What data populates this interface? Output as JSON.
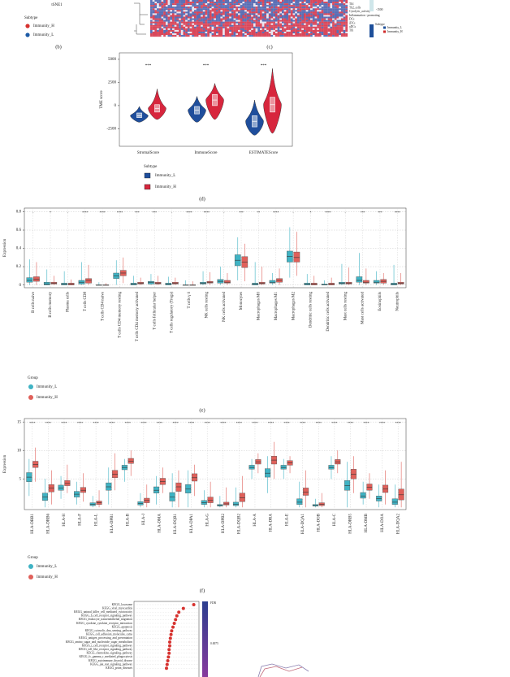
{
  "panel_labels": [
    "(b)",
    "(c)",
    "(d)",
    "(e)",
    "(f)"
  ],
  "chart_data": [
    {
      "type": "scatter",
      "x_label": "tSNE1",
      "legend_title": "Subtype",
      "series": [
        {
          "name": "Immunity_H",
          "color": "#d6322f"
        },
        {
          "name": "Immunity_L",
          "color": "#1d5ba6"
        }
      ]
    },
    {
      "type": "heatmap",
      "row_labels": [
        "Th1",
        "Th2_cells",
        "Cytolytic_activity",
        "Inflammation - promoting",
        "DCs",
        "iDCs",
        "aDCs",
        "Tfh"
      ],
      "colorbar_ticks": [
        -1500
      ],
      "legend_title": "Subtype",
      "legend_items": [
        "Immunity_L",
        "Immunity_H"
      ],
      "legend_colors": [
        "#1d4f9a",
        "#d02a2a"
      ]
    },
    {
      "type": "violin",
      "y_label": "TME score",
      "categories": [
        "StromalScore",
        "ImmuneScore",
        "ESTIMATEScore"
      ],
      "significance": [
        "***",
        "***",
        "***"
      ],
      "ylim": [
        -4400,
        5700
      ],
      "yticks": [
        5000,
        2500,
        0,
        -2500
      ],
      "legend_title": "Subtype",
      "series": [
        {
          "name": "Immunity_L",
          "color": "#1f4e9c",
          "boxes": [
            [
              -1800,
              -1300,
              -1100,
              -800,
              -100
            ],
            [
              -1800,
              -900,
              -500,
              -100,
              1000
            ],
            [
              -3200,
              -2300,
              -1700,
              -1100,
              600
            ]
          ]
        },
        {
          "name": "Immunity_H",
          "color": "#d7263d",
          "boxes": [
            [
              -1500,
              -700,
              -300,
              100,
              1800
            ],
            [
              -1500,
              0,
              600,
              1200,
              2400
            ],
            [
              -3000,
              -700,
              100,
              900,
              4000
            ]
          ]
        }
      ]
    },
    {
      "type": "box",
      "y_label": "Expression",
      "ylim": [
        -0.03,
        0.84
      ],
      "yticks": [
        0.0,
        0.2,
        0.4,
        0.6,
        0.8
      ],
      "categories": [
        "B cells naive",
        "B cells memory",
        "Plasma cells",
        "T cells CD8",
        "T cells CD4 naive",
        "T cells CD4 memory resting",
        "T cells CD4 memory activated",
        "T cells follicular helper",
        "T cells regulatory (Tregs)",
        "T cells γ δ",
        "NK cells resting",
        "NK cells activated",
        "Monocytes",
        "Macrophages M0",
        "Macrophages M1",
        "Macrophages M2",
        "Dendritic cells resting",
        "Dendritic cells activated",
        "Mast cells resting",
        "Mast cells activated",
        "Eosinophils",
        "Neutrophils"
      ],
      "significance": [
        "-",
        "*",
        "-",
        "****",
        "****",
        "****",
        "***",
        "***",
        "-",
        "****",
        "****",
        "-",
        "***",
        "**",
        "****",
        "-",
        "*",
        "****",
        "-",
        "***",
        "***",
        "****"
      ],
      "legend_title": "Group",
      "series": [
        {
          "name": "Immunity_L",
          "color": "#3fb3c4",
          "boxes": [
            [
              0,
              0.03,
              0.05,
              0.08,
              0.28
            ],
            [
              0,
              0,
              0.01,
              0.03,
              0.17
            ],
            [
              0,
              0,
              0.01,
              0.02,
              0.15
            ],
            [
              0,
              0.01,
              0.03,
              0.05,
              0.25
            ],
            [
              0,
              0,
              0,
              0,
              0.03
            ],
            [
              0,
              0.07,
              0.1,
              0.13,
              0.27
            ],
            [
              0,
              0,
              0.01,
              0.02,
              0.1
            ],
            [
              0,
              0.01,
              0.03,
              0.04,
              0.12
            ],
            [
              0,
              0,
              0.01,
              0.02,
              0.09
            ],
            [
              0,
              0,
              0,
              0,
              0.05
            ],
            [
              0,
              0.01,
              0.02,
              0.03,
              0.15
            ],
            [
              0,
              0.02,
              0.04,
              0.06,
              0.2
            ],
            [
              0.05,
              0.21,
              0.27,
              0.33,
              0.52
            ],
            [
              0,
              0,
              0.01,
              0.02,
              0.25
            ],
            [
              0,
              0.02,
              0.03,
              0.05,
              0.13
            ],
            [
              0.08,
              0.25,
              0.31,
              0.37,
              0.63
            ],
            [
              0,
              0,
              0.01,
              0.02,
              0.12
            ],
            [
              0,
              0,
              0,
              0.01,
              0.05
            ],
            [
              0,
              0.01,
              0.02,
              0.03,
              0.23
            ],
            [
              0,
              0.03,
              0.05,
              0.09,
              0.35
            ],
            [
              0,
              0.02,
              0.03,
              0.05,
              0.15
            ],
            [
              0,
              0,
              0.01,
              0.02,
              0.22
            ]
          ]
        },
        {
          "name": "Immunity_H",
          "color": "#e0605a",
          "boxes": [
            [
              0,
              0.04,
              0.06,
              0.09,
              0.25
            ],
            [
              0,
              0.01,
              0.02,
              0.03,
              0.1
            ],
            [
              0,
              0,
              0.01,
              0.02,
              0.06
            ],
            [
              0,
              0.02,
              0.05,
              0.07,
              0.22
            ],
            [
              0,
              0,
              0,
              0,
              0.02
            ],
            [
              0.02,
              0.1,
              0.13,
              0.16,
              0.3
            ],
            [
              0,
              0.01,
              0.02,
              0.03,
              0.08
            ],
            [
              0,
              0.01,
              0.02,
              0.03,
              0.1
            ],
            [
              0,
              0.01,
              0.02,
              0.03,
              0.08
            ],
            [
              0,
              0,
              0,
              0,
              0.04
            ],
            [
              0,
              0.02,
              0.03,
              0.04,
              0.14
            ],
            [
              0,
              0.02,
              0.03,
              0.05,
              0.13
            ],
            [
              0.04,
              0.19,
              0.25,
              0.31,
              0.45
            ],
            [
              0,
              0.01,
              0.02,
              0.03,
              0.2
            ],
            [
              0,
              0.03,
              0.05,
              0.07,
              0.18
            ],
            [
              0.1,
              0.25,
              0.3,
              0.36,
              0.58
            ],
            [
              0,
              0,
              0.01,
              0.02,
              0.1
            ],
            [
              0,
              0,
              0.01,
              0.02,
              0.08
            ],
            [
              0,
              0.01,
              0.02,
              0.03,
              0.19
            ],
            [
              0,
              0.02,
              0.03,
              0.05,
              0.18
            ],
            [
              0,
              0.02,
              0.04,
              0.06,
              0.13
            ],
            [
              0,
              0.01,
              0.02,
              0.03,
              0.13
            ]
          ]
        }
      ]
    },
    {
      "type": "box",
      "y_label": "Expression",
      "ylim": [
        -0.4,
        15.6
      ],
      "yticks": [
        5,
        10,
        15
      ],
      "categories": [
        "HLA-DRB1",
        "HLA-DRB6",
        "HLA-H",
        "HLA-F",
        "HLA-L",
        "HLA-DPB1",
        "HLA-B",
        "HLA-J",
        "HLA-DMA",
        "HLA-DQB1",
        "HLA-DPA1",
        "HLA-G",
        "HLA-DPB2",
        "HLA-DQB2",
        "HLA-A",
        "HLA-DRA",
        "HLA-E",
        "HLA-DQA1",
        "HLA-DOB",
        "HLA-C",
        "HLA-DRB5",
        "HLA-DMB",
        "HLA-DOA",
        "HLA-DQA2"
      ],
      "significance": [
        "****",
        "****",
        "****",
        "****",
        "****",
        "****",
        "****",
        "****",
        "****",
        "****",
        "****",
        "****",
        "****",
        "****",
        "****",
        "****",
        "****",
        "****",
        "****",
        "****",
        "****",
        "****",
        "****",
        "****"
      ],
      "legend_title": "Group",
      "series": [
        {
          "name": "Immunity_L",
          "color": "#3fb3c4",
          "boxes": [
            [
              2,
              4.5,
              5.3,
              6.1,
              8.5
            ],
            [
              0,
              1.2,
              1.8,
              2.5,
              5
            ],
            [
              1.5,
              3,
              3.4,
              3.9,
              5.5
            ],
            [
              0.5,
              1.8,
              2.3,
              2.8,
              4.5
            ],
            [
              0,
              0.3,
              0.5,
              0.8,
              2
            ],
            [
              0.5,
              3,
              3.6,
              4.3,
              7
            ],
            [
              4.5,
              6.6,
              7,
              7.4,
              8.5
            ],
            [
              0,
              0.4,
              0.7,
              1,
              2.5
            ],
            [
              0.5,
              2.5,
              3,
              3.6,
              5.5
            ],
            [
              0,
              1.1,
              1.8,
              2.6,
              6
            ],
            [
              0,
              2.5,
              3.2,
              4,
              6.5
            ],
            [
              0,
              0.5,
              0.8,
              1.2,
              3
            ],
            [
              0,
              0.2,
              0.3,
              0.5,
              2
            ],
            [
              0,
              0.3,
              0.5,
              0.9,
              3.5
            ],
            [
              5,
              6.7,
              7,
              7.4,
              8.5
            ],
            [
              2.5,
              5.3,
              6,
              6.8,
              9
            ],
            [
              5,
              6.7,
              7,
              7.4,
              8.5
            ],
            [
              0,
              0.5,
              0.9,
              1.5,
              4.5
            ],
            [
              0,
              0.2,
              0.3,
              0.5,
              1.5
            ],
            [
              5,
              6.7,
              7,
              7.4,
              9
            ],
            [
              0,
              3,
              3.8,
              4.7,
              8
            ],
            [
              0.5,
              1.6,
              2,
              2.6,
              4.5
            ],
            [
              0,
              1.1,
              1.5,
              2,
              4
            ],
            [
              0,
              0.5,
              0.9,
              1.5,
              4
            ]
          ]
        },
        {
          "name": "Immunity_H",
          "color": "#e0605a",
          "boxes": [
            [
              4.5,
              7,
              7.5,
              8.1,
              10.5
            ],
            [
              0.5,
              2.7,
              3.4,
              4,
              6.5
            ],
            [
              2.5,
              3.8,
              4.2,
              4.7,
              7.5
            ],
            [
              1,
              2.6,
              3,
              3.5,
              6
            ],
            [
              0,
              0.5,
              0.8,
              1.1,
              3
            ],
            [
              3,
              5.2,
              5.8,
              6.5,
              9.5
            ],
            [
              5.5,
              7.7,
              8.1,
              8.6,
              10
            ],
            [
              0,
              0.8,
              1.2,
              1.6,
              4
            ],
            [
              2.5,
              4,
              4.5,
              5.1,
              7
            ],
            [
              0,
              2.8,
              3.6,
              4.3,
              6.5
            ],
            [
              2,
              4.6,
              5.2,
              5.9,
              7.5
            ],
            [
              0,
              0.8,
              1.2,
              1.8,
              4.5
            ],
            [
              0,
              0.4,
              0.6,
              0.9,
              3.5
            ],
            [
              0,
              1,
              1.7,
              2.5,
              5.5
            ],
            [
              6,
              7.6,
              8,
              8.4,
              9.5
            ],
            [
              5,
              7.6,
              8.3,
              9,
              11.5
            ],
            [
              6,
              7.4,
              7.8,
              8.2,
              9
            ],
            [
              0,
              2.1,
              2.7,
              3.4,
              6.5
            ],
            [
              0,
              0.3,
              0.5,
              0.8,
              2.5
            ],
            [
              6,
              7.6,
              8,
              8.4,
              10
            ],
            [
              2.5,
              5,
              5.8,
              6.7,
              9
            ],
            [
              1.5,
              3,
              3.5,
              4.1,
              6
            ],
            [
              0.5,
              2.6,
              3.2,
              3.9,
              6.5
            ],
            [
              0,
              1.3,
              2.2,
              3.2,
              8
            ]
          ]
        }
      ]
    },
    {
      "type": "dot",
      "color": "#d6322f",
      "xlim": [
        0,
        1
      ],
      "categories": [
        "KEGG_lysosome",
        "KEGG_viral_myocarditis",
        "KEGG_natural_killer_cell_mediated_cytotoxicity",
        "KEGG_b_cell_receptor_signaling_pathway",
        "KEGG_leukocyte_transendothelial_migration",
        "KEGG_cytokine_cytokine_receptor_interaction",
        "KEGG_apoptosis",
        "KEGG_cytosolic_dna_sensing_pathway",
        "KEGG_cell_adhesion_molecules_cams",
        "KEGG_antigen_processing_and_presentation",
        "KEGG_amino_sugar_and_nucleotide_sugar_metabolism",
        "KEGG_t_cell_receptor_signaling_pathway",
        "KEGG_toll_like_receptor_signaling_pathway",
        "KEGG_chemokine_signaling_pathway",
        "KEGG_fc_gamma_r_mediated_phagocytosis",
        "KEGG_autoimmune_thyroid_disease",
        "KEGG_jak_stat_signaling_pathway",
        "KEGG_prion_diseases"
      ],
      "values": [
        0.92,
        0.76,
        0.69,
        0.66,
        0.64,
        0.62,
        0.6,
        0.58,
        0.57,
        0.56,
        0.55,
        0.55,
        0.54,
        0.54,
        0.53,
        0.52,
        0.51,
        0.5
      ],
      "colorbar_title": "FDR",
      "colorbar_ticks": [
        0.0075
      ]
    }
  ]
}
